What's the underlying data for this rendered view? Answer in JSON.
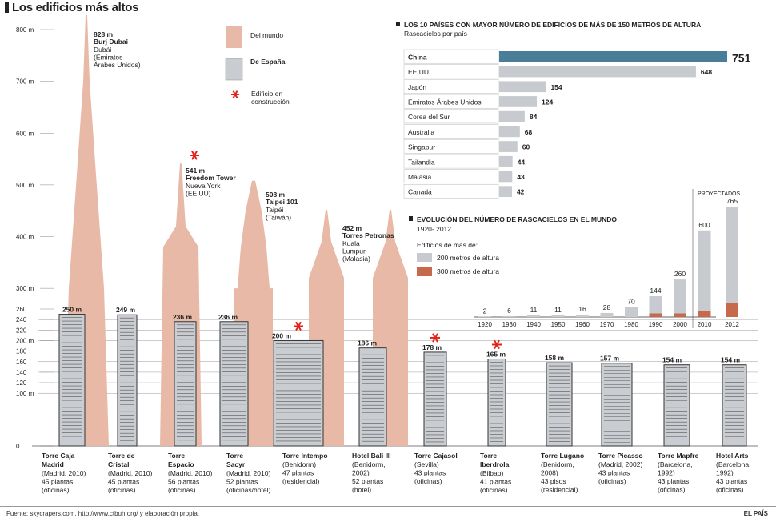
{
  "page": {
    "title": "Los edificios más altos",
    "source": "Fuente: skycrapers.com, http://www.ctbuh.org/ y elaboración propia.",
    "credit": "EL PAÍS"
  },
  "legend": {
    "world": "Del mundo",
    "spain": "De España",
    "construction_1": "Edificio en",
    "construction_2": "construcción"
  },
  "colors": {
    "world": "#e8b9a6",
    "spain_fill": "#c9cdd2",
    "spain_stroke": "#333333",
    "accent": "#4a7d98",
    "bar_gray": "#c7cace",
    "bar_red": "#c76a4c",
    "star": "#e2231a"
  },
  "chart_data": [
    {
      "type": "bar",
      "title": "Los edificios más altos",
      "unit": "m",
      "ytick_labels": [
        "800 m",
        "700 m",
        "600 m",
        "500 m",
        "400 m",
        "300 m",
        "260",
        "240",
        "220",
        "200 m",
        "180",
        "160",
        "140",
        "120",
        "100 m",
        "0"
      ],
      "world_buildings": [
        {
          "height": 828,
          "height_label": "828 m",
          "name": "Burj Dubai",
          "lines": [
            "Dubái",
            "(Emiratos",
            "Árabes Unidos)"
          ],
          "under_construction": false
        },
        {
          "height": 541,
          "height_label": "541 m",
          "name": "Freedom Tower",
          "lines": [
            "Nueva York",
            "(EE UU)"
          ],
          "under_construction": true
        },
        {
          "height": 508,
          "height_label": "508 m",
          "name": "Taipei 101",
          "lines": [
            "Taipéi",
            "(Taiwán)"
          ],
          "under_construction": false
        },
        {
          "height": 452,
          "height_label": "452 m",
          "name": "Torres Petronas",
          "lines": [
            "Kuala",
            "Lumpur",
            "(Malasia)"
          ],
          "under_construction": false
        }
      ],
      "spain_buildings": [
        {
          "height": 250,
          "height_label": "250 m",
          "name_lines": [
            "Torre Caja",
            "Madrid"
          ],
          "info": [
            "(Madrid, 2010)",
            "45 plantas",
            "(oficinas)"
          ],
          "under_construction": false
        },
        {
          "height": 249,
          "height_label": "249 m",
          "name_lines": [
            "Torre de",
            "Cristal"
          ],
          "info": [
            "(Madrid, 2010)",
            "45 plantas",
            "(oficinas)"
          ],
          "under_construction": false
        },
        {
          "height": 236,
          "height_label": "236 m",
          "name_lines": [
            "Torre",
            "Espacio"
          ],
          "info": [
            "(Madrid, 2010)",
            "56 plantas",
            "(oficinas)"
          ],
          "under_construction": false
        },
        {
          "height": 236,
          "height_label": "236 m",
          "name_lines": [
            "Torre",
            "Sacyr"
          ],
          "info": [
            "(Madrid, 2010)",
            "52 plantas",
            "(oficinas/hotel)"
          ],
          "under_construction": false
        },
        {
          "height": 200,
          "height_label": "200 m",
          "name_lines": [
            "Torre Intempo"
          ],
          "info": [
            "(Benidorm)",
            "47 plantas",
            "(residencial)"
          ],
          "under_construction": true
        },
        {
          "height": 186,
          "height_label": "186 m",
          "name_lines": [
            "Hotel Bali III"
          ],
          "info": [
            "(Benidorm,",
            "2002)",
            "52 plantas",
            "(hotel)"
          ],
          "under_construction": false
        },
        {
          "height": 178,
          "height_label": "178 m",
          "name_lines": [
            "Torre Cajasol"
          ],
          "info": [
            "(Sevilla)",
            "43 plantas",
            "(oficinas)"
          ],
          "under_construction": true
        },
        {
          "height": 165,
          "height_label": "165 m",
          "name_lines": [
            "Torre",
            "Iberdrola"
          ],
          "info": [
            "(Bilbao)",
            "41 plantas",
            "(oficinas)"
          ],
          "under_construction": true
        },
        {
          "height": 158,
          "height_label": "158 m",
          "name_lines": [
            "Torre Lugano"
          ],
          "info": [
            "(Benidorm,",
            "2008)",
            "43 pisos",
            "(residencial)"
          ],
          "under_construction": false
        },
        {
          "height": 157,
          "height_label": "157 m",
          "name_lines": [
            "Torre Picasso"
          ],
          "info": [
            "(Madrid, 2002)",
            "43 plantas",
            "(oficinas)"
          ],
          "under_construction": false
        },
        {
          "height": 154,
          "height_label": "154 m",
          "name_lines": [
            "Torre Mapfre"
          ],
          "info": [
            "(Barcelona,",
            "1992)",
            "43 plantas",
            "(oficinas)"
          ],
          "under_construction": false
        },
        {
          "height": 154,
          "height_label": "154 m",
          "name_lines": [
            "Hotel Arts"
          ],
          "info": [
            "(Barcelona,",
            "1992)",
            "43 plantas",
            "(oficinas)"
          ],
          "under_construction": false
        }
      ]
    },
    {
      "type": "bar",
      "orientation": "horizontal",
      "title": "LOS 10 PAÍSES CON MAYOR NÚMERO DE EDIFICIOS DE MÁS DE 150 METROS DE ALTURA",
      "subtitle": "Rascacielos por país",
      "categories": [
        "China",
        "EE UU",
        "Japón",
        "Emiratos Árabes Unidos",
        "Corea del Sur",
        "Australia",
        "Singapur",
        "Tailandia",
        "Malasia",
        "Canadá"
      ],
      "values": [
        751,
        648,
        154,
        124,
        84,
        68,
        60,
        44,
        43,
        42
      ],
      "value_labels": [
        "751",
        "648",
        "154",
        "124",
        "84",
        "68",
        "60",
        "44",
        "43",
        "42"
      ]
    },
    {
      "type": "bar",
      "title": "EVOLUCIÓN DEL NÚMERO DE RASCACIELOS EN EL MUNDO",
      "subtitle": "1920- 2012",
      "legend_title": "Edificios de más de:",
      "categories": [
        "1920",
        "1930",
        "1940",
        "1950",
        "1960",
        "1970",
        "1980",
        "1990",
        "2000",
        "2010",
        "2012"
      ],
      "projected_label": "PROYECTADOS",
      "series": [
        {
          "name": "200 metros de altura",
          "values": [
            2,
            6,
            11,
            11,
            16,
            28,
            70,
            144,
            260,
            600,
            765
          ]
        },
        {
          "name": "300 metros de altura",
          "values": [
            0,
            0,
            0,
            0,
            0,
            0,
            0,
            25,
            25,
            40,
            95
          ]
        }
      ],
      "value_labels": [
        "2",
        "6",
        "11",
        "11",
        "16",
        "28",
        "70",
        "144",
        "260",
        "600",
        "765"
      ]
    }
  ]
}
